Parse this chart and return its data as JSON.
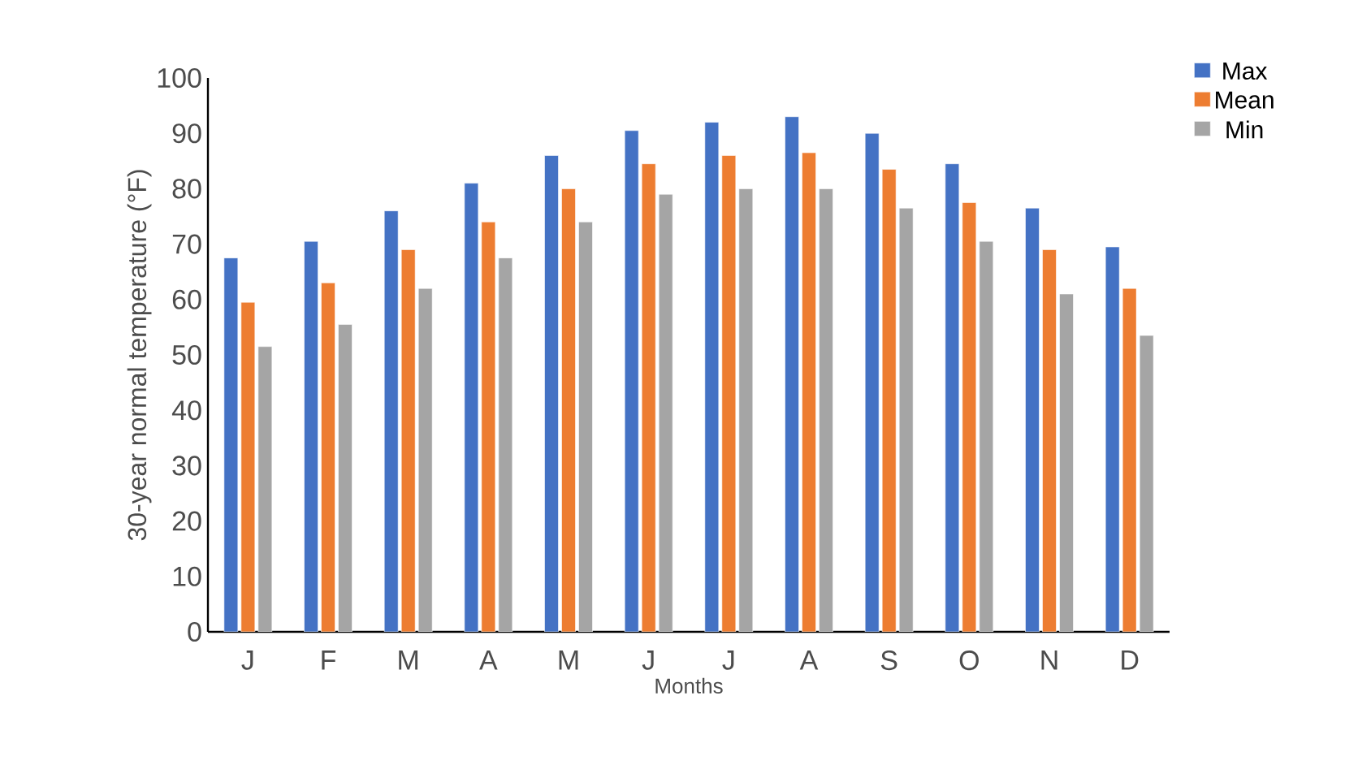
{
  "chart_data": {
    "type": "bar",
    "xlabel": "Months",
    "ylabel": "30-year normal temperature (°F)",
    "categories": [
      "J",
      "F",
      "M",
      "A",
      "M",
      "J",
      "J",
      "A",
      "S",
      "O",
      "N",
      "D"
    ],
    "series": [
      {
        "name": "Max",
        "color": "#4472c4",
        "values": [
          67.5,
          70.5,
          76,
          81,
          86,
          90.5,
          92,
          93,
          90,
          84.5,
          76.5,
          69.5
        ]
      },
      {
        "name": "Mean",
        "color": "#ed7d31",
        "values": [
          59.5,
          63,
          69,
          74,
          80,
          84.5,
          86,
          86.5,
          83.5,
          77.5,
          69,
          62
        ]
      },
      {
        "name": "Min",
        "color": "#a5a5a5",
        "values": [
          51.5,
          55.5,
          62,
          67.5,
          74,
          79,
          80,
          80,
          76.5,
          70.5,
          61,
          53.5
        ]
      }
    ],
    "ylim": [
      0,
      100
    ],
    "yticks": [
      0,
      10,
      20,
      30,
      40,
      50,
      60,
      70,
      80,
      90,
      100
    ],
    "grid": false,
    "legend": "top right"
  }
}
